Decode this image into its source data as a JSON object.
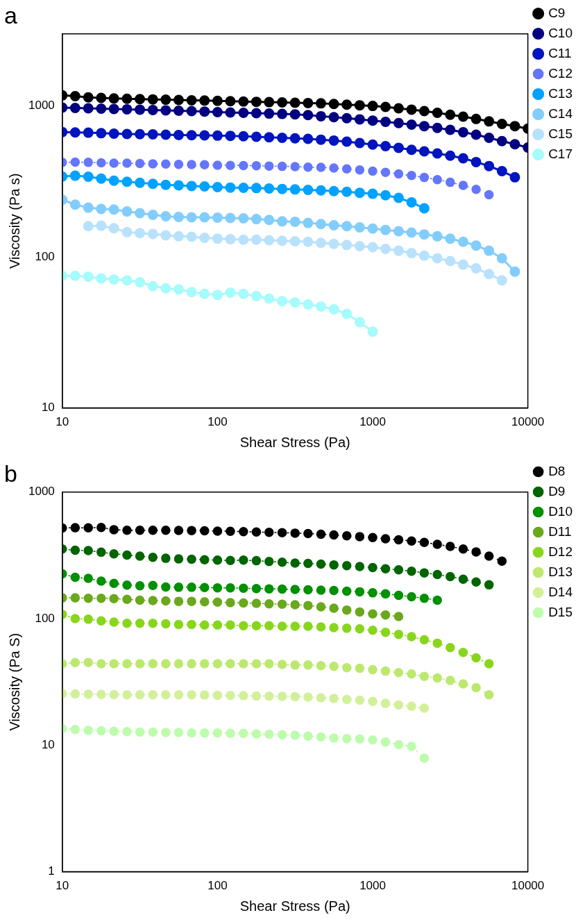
{
  "chart_data": [
    {
      "type": "line",
      "title": "a",
      "xlabel": "Shear Stress (Pa)",
      "ylabel": "Viscosity (Pa s)",
      "log": "xy",
      "grid": false,
      "legend": "top right",
      "marker": "circle",
      "line_style": "solid",
      "xlim": [
        10,
        10000
      ],
      "ylim": [
        10,
        3000
      ],
      "xticks": [
        10,
        100,
        1000,
        10000
      ],
      "yticks": [
        10,
        100,
        1000
      ],
      "x": [
        10,
        12.1,
        14.7,
        17.8,
        21.5,
        26.1,
        31.6,
        38.3,
        46.4,
        56.2,
        68.1,
        82.5,
        100,
        121,
        147,
        178,
        215,
        261,
        316,
        383,
        464,
        562,
        681,
        825,
        1000,
        1210,
        1470,
        1780,
        2150,
        2610,
        3160,
        3830,
        4640,
        5620,
        6810,
        8250,
        10000
      ],
      "series": [
        {
          "name": "C9",
          "color": "#000000",
          "values": [
            1175,
            1160,
            1140,
            1130,
            1120,
            1115,
            1110,
            1105,
            1100,
            1095,
            1090,
            1085,
            1080,
            1075,
            1070,
            1065,
            1060,
            1055,
            1050,
            1045,
            1040,
            1030,
            1020,
            1010,
            1000,
            985,
            965,
            945,
            925,
            900,
            875,
            850,
            820,
            790,
            760,
            735,
            708
          ]
        },
        {
          "name": "C10",
          "color": "#000080",
          "values": [
            975,
            970,
            965,
            960,
            955,
            950,
            945,
            940,
            935,
            930,
            925,
            918,
            910,
            905,
            900,
            895,
            890,
            885,
            880,
            870,
            855,
            843,
            830,
            815,
            800,
            785,
            770,
            752,
            735,
            715,
            695,
            670,
            645,
            615,
            585,
            558,
            530
          ]
        },
        {
          "name": "C11",
          "color": "#0015bd",
          "values": [
            672,
            668,
            665,
            660,
            655,
            652,
            650,
            648,
            645,
            642,
            640,
            638,
            636,
            634,
            630,
            625,
            620,
            615,
            610,
            605,
            598,
            590,
            580,
            568,
            555,
            542,
            528,
            512,
            500,
            485,
            468,
            450,
            425,
            400,
            370,
            337,
            null
          ]
        },
        {
          "name": "C12",
          "color": "#6476fb",
          "line_style": "dashed",
          "values": [
            423,
            425,
            423,
            420,
            418,
            418,
            416,
            414,
            412,
            410,
            409,
            408,
            405,
            404,
            403,
            402,
            400,
            398,
            396,
            393,
            392,
            388,
            383,
            377,
            370,
            363,
            355,
            346,
            336,
            325,
            312,
            298,
            280,
            258,
            null,
            null,
            null
          ]
        },
        {
          "name": "C13",
          "color": "#00a2ff",
          "values": [
            341,
            345,
            340,
            330,
            320,
            315,
            310,
            305,
            300,
            298,
            295,
            293,
            290,
            288,
            287,
            286,
            284,
            282,
            280,
            278,
            276,
            273,
            270,
            266,
            262,
            256,
            246,
            230,
            210,
            null,
            null,
            null,
            null,
            null,
            null,
            null,
            null
          ]
        },
        {
          "name": "C14",
          "color": "#82cdfc",
          "values": [
            239,
            222,
            212,
            208,
            206,
            200,
            195,
            190,
            186,
            184,
            183,
            183,
            182,
            181,
            180,
            178,
            176,
            172,
            171,
            168,
            165,
            162,
            160,
            157,
            154,
            151,
            148,
            145,
            141,
            137,
            132,
            126,
            119,
            110,
            98,
            80,
            null
          ]
        },
        {
          "name": "C15",
          "color": "#b8e2fc",
          "values": [
            null,
            null,
            160,
            161,
            155,
            146,
            144,
            142,
            139,
            137,
            136,
            134,
            132,
            131,
            130,
            130,
            129,
            128,
            127,
            126,
            124,
            122,
            120,
            118,
            116,
            113,
            110,
            106,
            102,
            98,
            94,
            89,
            84,
            77,
            70,
            null,
            null
          ]
        },
        {
          "name": "C17",
          "color": "#a6fbfb",
          "values": [
            75,
            75,
            74,
            72,
            71,
            70,
            68,
            64,
            62,
            61,
            58.5,
            57,
            56,
            58,
            57,
            55,
            53,
            51,
            50,
            48.5,
            47,
            45,
            42,
            37,
            32,
            null,
            null,
            null,
            null,
            null,
            null,
            null,
            null,
            null,
            null,
            null,
            null
          ]
        }
      ]
    },
    {
      "type": "line",
      "title": "b",
      "xlabel": "Shear Stress (Pa)",
      "ylabel": "Viscosity (Pa S)",
      "log": "xy",
      "grid": false,
      "legend": "top right",
      "marker": "circle",
      "line_style": "dashed",
      "xlim": [
        10,
        10000
      ],
      "ylim": [
        1,
        1000
      ],
      "xticks": [
        10,
        100,
        1000,
        10000
      ],
      "yticks": [
        1,
        10,
        100,
        1000
      ],
      "x": [
        10,
        12.1,
        14.7,
        17.8,
        21.5,
        26.1,
        31.6,
        38.3,
        46.4,
        56.2,
        68.1,
        82.5,
        100,
        121,
        147,
        178,
        215,
        261,
        316,
        383,
        464,
        562,
        681,
        825,
        1000,
        1210,
        1470,
        1780,
        2150,
        2610,
        3160,
        3830,
        4640,
        5620,
        6810
      ],
      "series": [
        {
          "name": "D8",
          "color": "#000000",
          "values": [
            520,
            523,
            522,
            525,
            505,
            500,
            500,
            500,
            499,
            498,
            497,
            495,
            492,
            490,
            487,
            484,
            481,
            478,
            474,
            470,
            465,
            459,
            452,
            445,
            437,
            428,
            420,
            411,
            400,
            387,
            372,
            355,
            337,
            312,
            285
          ]
        },
        {
          "name": "D9",
          "color": "#006400",
          "values": [
            355,
            347,
            345,
            335,
            325,
            318,
            312,
            305,
            300,
            297,
            295,
            292,
            290,
            288,
            290,
            287,
            283,
            279,
            275,
            273,
            270,
            266,
            262,
            258,
            253,
            248,
            243,
            237,
            230,
            223,
            215,
            205,
            195,
            185,
            null
          ]
        },
        {
          "name": "D10",
          "color": "#009000",
          "values": [
            226,
            212,
            208,
            198,
            190,
            184,
            182,
            183,
            178,
            177,
            177,
            176,
            175,
            175,
            174,
            173,
            172,
            171,
            170,
            169,
            168,
            167,
            165,
            163,
            160,
            157,
            153,
            149,
            145,
            140,
            null,
            null,
            null,
            null,
            null
          ]
        },
        {
          "name": "D11",
          "color": "#6aa81c",
          "values": [
            146,
            146,
            145,
            145,
            144,
            142,
            140,
            139,
            138,
            137,
            137,
            136,
            135,
            134,
            133,
            132,
            131,
            130,
            129,
            127,
            124,
            121,
            117,
            113,
            109,
            107,
            104,
            null,
            null,
            null,
            null,
            null,
            null,
            null,
            null
          ]
        },
        {
          "name": "D12",
          "color": "#88d61c",
          "values": [
            108,
            100,
            99,
            96,
            94,
            92,
            92,
            92,
            91,
            90,
            90,
            89,
            89,
            89,
            88,
            88,
            88,
            87,
            87,
            87,
            86,
            85,
            84,
            83,
            81,
            78,
            75,
            72,
            68,
            64,
            59,
            54,
            49,
            44,
            null
          ]
        },
        {
          "name": "D13",
          "color": "#bde86f",
          "values": [
            44,
            45,
            45,
            44,
            44,
            44,
            44,
            44,
            44,
            44,
            44,
            44,
            44,
            44,
            44,
            44,
            44,
            43.5,
            43,
            43,
            42.5,
            42,
            41,
            40.5,
            39.5,
            38.5,
            37.5,
            36.5,
            35,
            34,
            32.5,
            30.5,
            28.5,
            25,
            null
          ]
        },
        {
          "name": "D14",
          "color": "#d2f09a",
          "values": [
            25.6,
            25.4,
            25.3,
            25.2,
            25.1,
            25,
            25,
            25,
            25,
            25,
            25,
            24.9,
            24.8,
            24.7,
            24.6,
            24.5,
            24.4,
            24.3,
            24.2,
            24,
            23.7,
            23.4,
            23,
            22.7,
            22.2,
            21.4,
            20.8,
            20.3,
            19.6,
            null,
            null,
            null,
            null,
            null,
            null
          ]
        },
        {
          "name": "D15",
          "color": "#bdfcad",
          "values": [
            13.5,
            13.3,
            13.1,
            13,
            12.9,
            12.8,
            12.7,
            12.7,
            12.6,
            12.6,
            12.5,
            12.5,
            12.5,
            12.4,
            12.4,
            12.3,
            12.2,
            12.1,
            12,
            11.8,
            11.6,
            11.4,
            11.3,
            11.2,
            11,
            10.6,
            10.1,
            9.8,
            7.9,
            null,
            null,
            null,
            null,
            null,
            null
          ]
        }
      ]
    }
  ]
}
